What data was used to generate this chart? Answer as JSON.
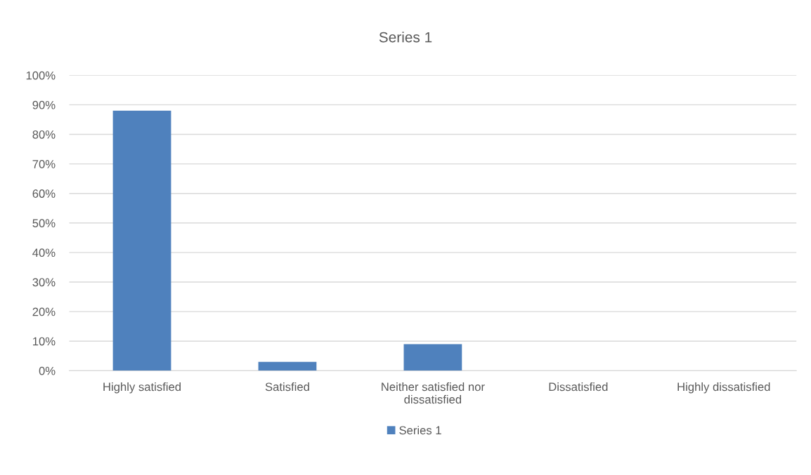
{
  "chart_data": {
    "type": "bar",
    "title": "Series 1",
    "categories": [
      "Highly satisfied",
      "Satisfied",
      "Neither satisfied nor\ndissatisfied",
      "Dissatisfied",
      "Highly dissatisfied"
    ],
    "series": [
      {
        "name": "Series 1",
        "color": "#4f81bd",
        "values": [
          88,
          3,
          9,
          0,
          0
        ]
      }
    ],
    "ylim": [
      0,
      100
    ],
    "yticks": [
      {
        "value": 0,
        "label": "0%"
      },
      {
        "value": 10,
        "label": "10%"
      },
      {
        "value": 20,
        "label": "20%"
      },
      {
        "value": 30,
        "label": "30%"
      },
      {
        "value": 40,
        "label": "40%"
      },
      {
        "value": 50,
        "label": "50%"
      },
      {
        "value": 60,
        "label": "60%"
      },
      {
        "value": 70,
        "label": "70%"
      },
      {
        "value": 80,
        "label": "80%"
      },
      {
        "value": 90,
        "label": "90%"
      },
      {
        "value": 100,
        "label": "100%"
      }
    ],
    "grid": "y",
    "legend": "bottom"
  }
}
